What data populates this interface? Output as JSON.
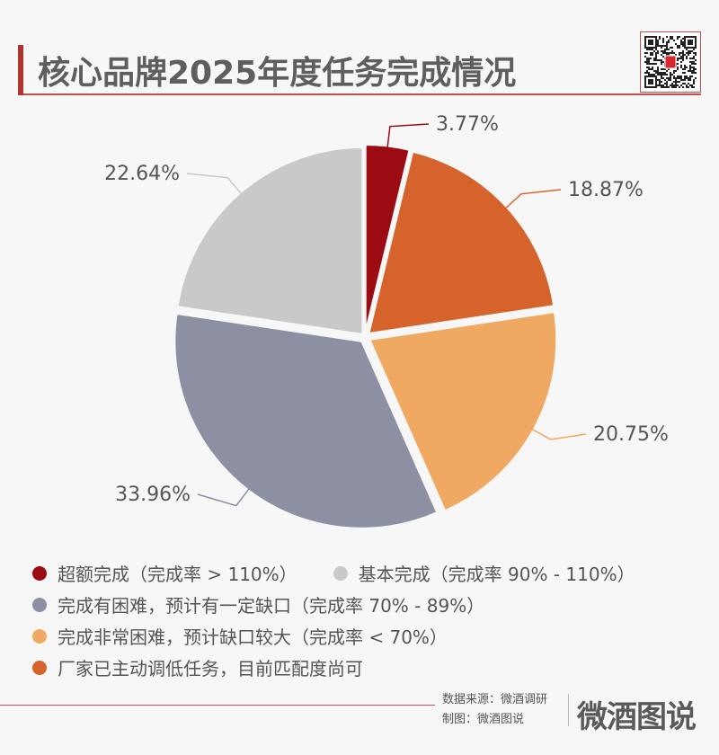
{
  "header": {
    "title": "核心品牌2025年度任务完成情况",
    "qr_label": "微酒"
  },
  "chart_data": {
    "type": "pie",
    "title": "核心品牌2025年度任务完成情况",
    "start": "top",
    "direction": "clockwise",
    "slices": [
      {
        "category": "超额完成（完成率 > 110%）",
        "value": 3.77,
        "label": "3.77%",
        "color": "#9c0a12"
      },
      {
        "category": "厂家已主动调低任务，目前匹配度尚可",
        "value": 18.87,
        "label": "18.87%",
        "color": "#d6632b"
      },
      {
        "category": "完成非常困难，预计缺口较大（完成率 < 70%）",
        "value": 20.75,
        "label": "20.75%",
        "color": "#f0a962"
      },
      {
        "category": "完成有困难，预计有一定缺口（完成率 70% - 89%）",
        "value": 33.96,
        "label": "33.96%",
        "color": "#8d8fa3"
      },
      {
        "category": "基本完成（完成率 90% - 110%）",
        "value": 22.64,
        "label": "22.64%",
        "color": "#c9c9c9"
      }
    ],
    "legend_placement": "bottom"
  },
  "legend": {
    "rows": [
      [
        0,
        4
      ],
      [
        3
      ],
      [
        2
      ],
      [
        1
      ]
    ]
  },
  "footer": {
    "source": "数据来源：微酒调研",
    "made_by": "制图：微酒图说",
    "logo": "微酒图说"
  }
}
